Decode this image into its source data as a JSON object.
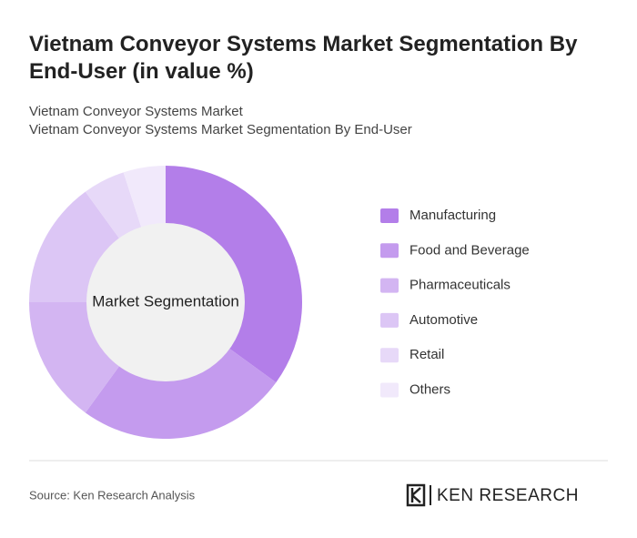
{
  "chart_data": {
    "type": "donut",
    "title": "Vietnam Conveyor Systems Market Segmentation By End-User (in value %)",
    "subtitle": [
      "Vietnam Conveyor Systems Market",
      "Vietnam Conveyor Systems Market Segmentation By End-User"
    ],
    "center_label": "Market Segmentation",
    "categories": [
      "Manufacturing",
      "Food and Beverage",
      "Pharmaceuticals",
      "Automotive",
      "Retail",
      "Others"
    ],
    "values": [
      35,
      25,
      15,
      15,
      5,
      5
    ],
    "colors": [
      "#b37ee9",
      "#c49bee",
      "#d3b5f2",
      "#dcc6f5",
      "#e7d9f8",
      "#f1e9fb"
    ],
    "source": "Source: Ken Research Analysis",
    "brand": "KEN RESEARCH"
  }
}
